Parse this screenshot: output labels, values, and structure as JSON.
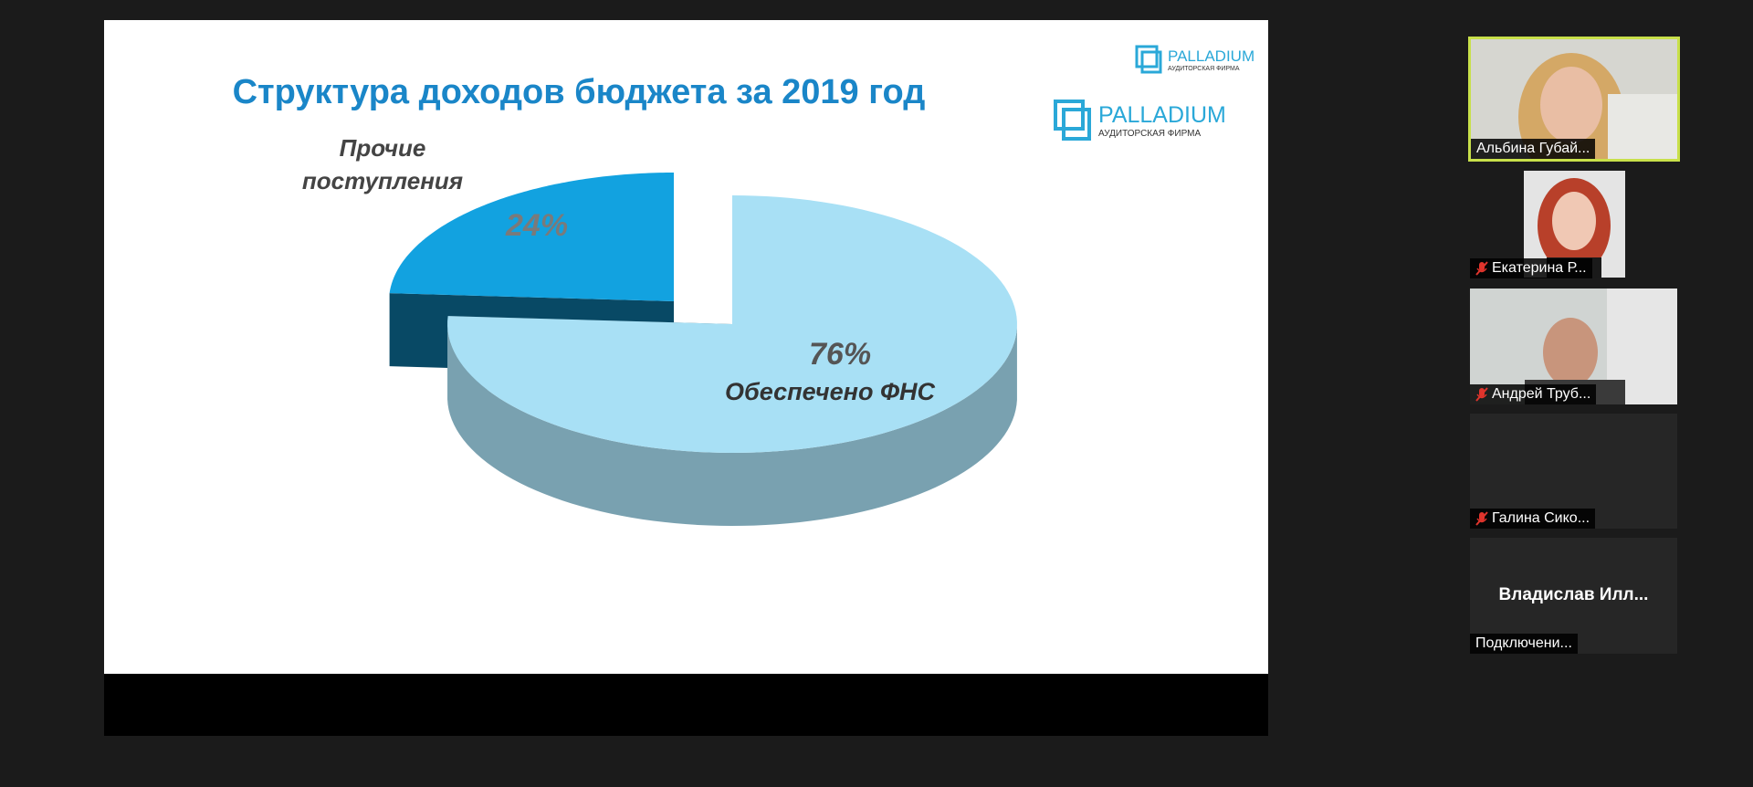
{
  "slide": {
    "title": "Структура доходов бюджета за 2019 год",
    "logo": {
      "name": "PALLADIUM",
      "subtitle": "АУДИТОРСКАЯ ФИРМА"
    }
  },
  "chart_data": {
    "type": "pie",
    "categories": [
      "Прочие поступления",
      "Обеспечено ФНС"
    ],
    "values": [
      24,
      76
    ],
    "value_labels": [
      "24%",
      "76%"
    ],
    "colors": [
      "#12a2e0",
      "#a8e0f5"
    ]
  },
  "participants": [
    {
      "name": "Альбина Губай...",
      "muted": false
    },
    {
      "name": "Екатерина Р...",
      "muted": true
    },
    {
      "name": "Андрей Труб...",
      "muted": true
    },
    {
      "name": "Галина Сико...",
      "muted": true
    },
    {
      "name": "Владислав Илл...",
      "status": "Подключени..."
    }
  ]
}
